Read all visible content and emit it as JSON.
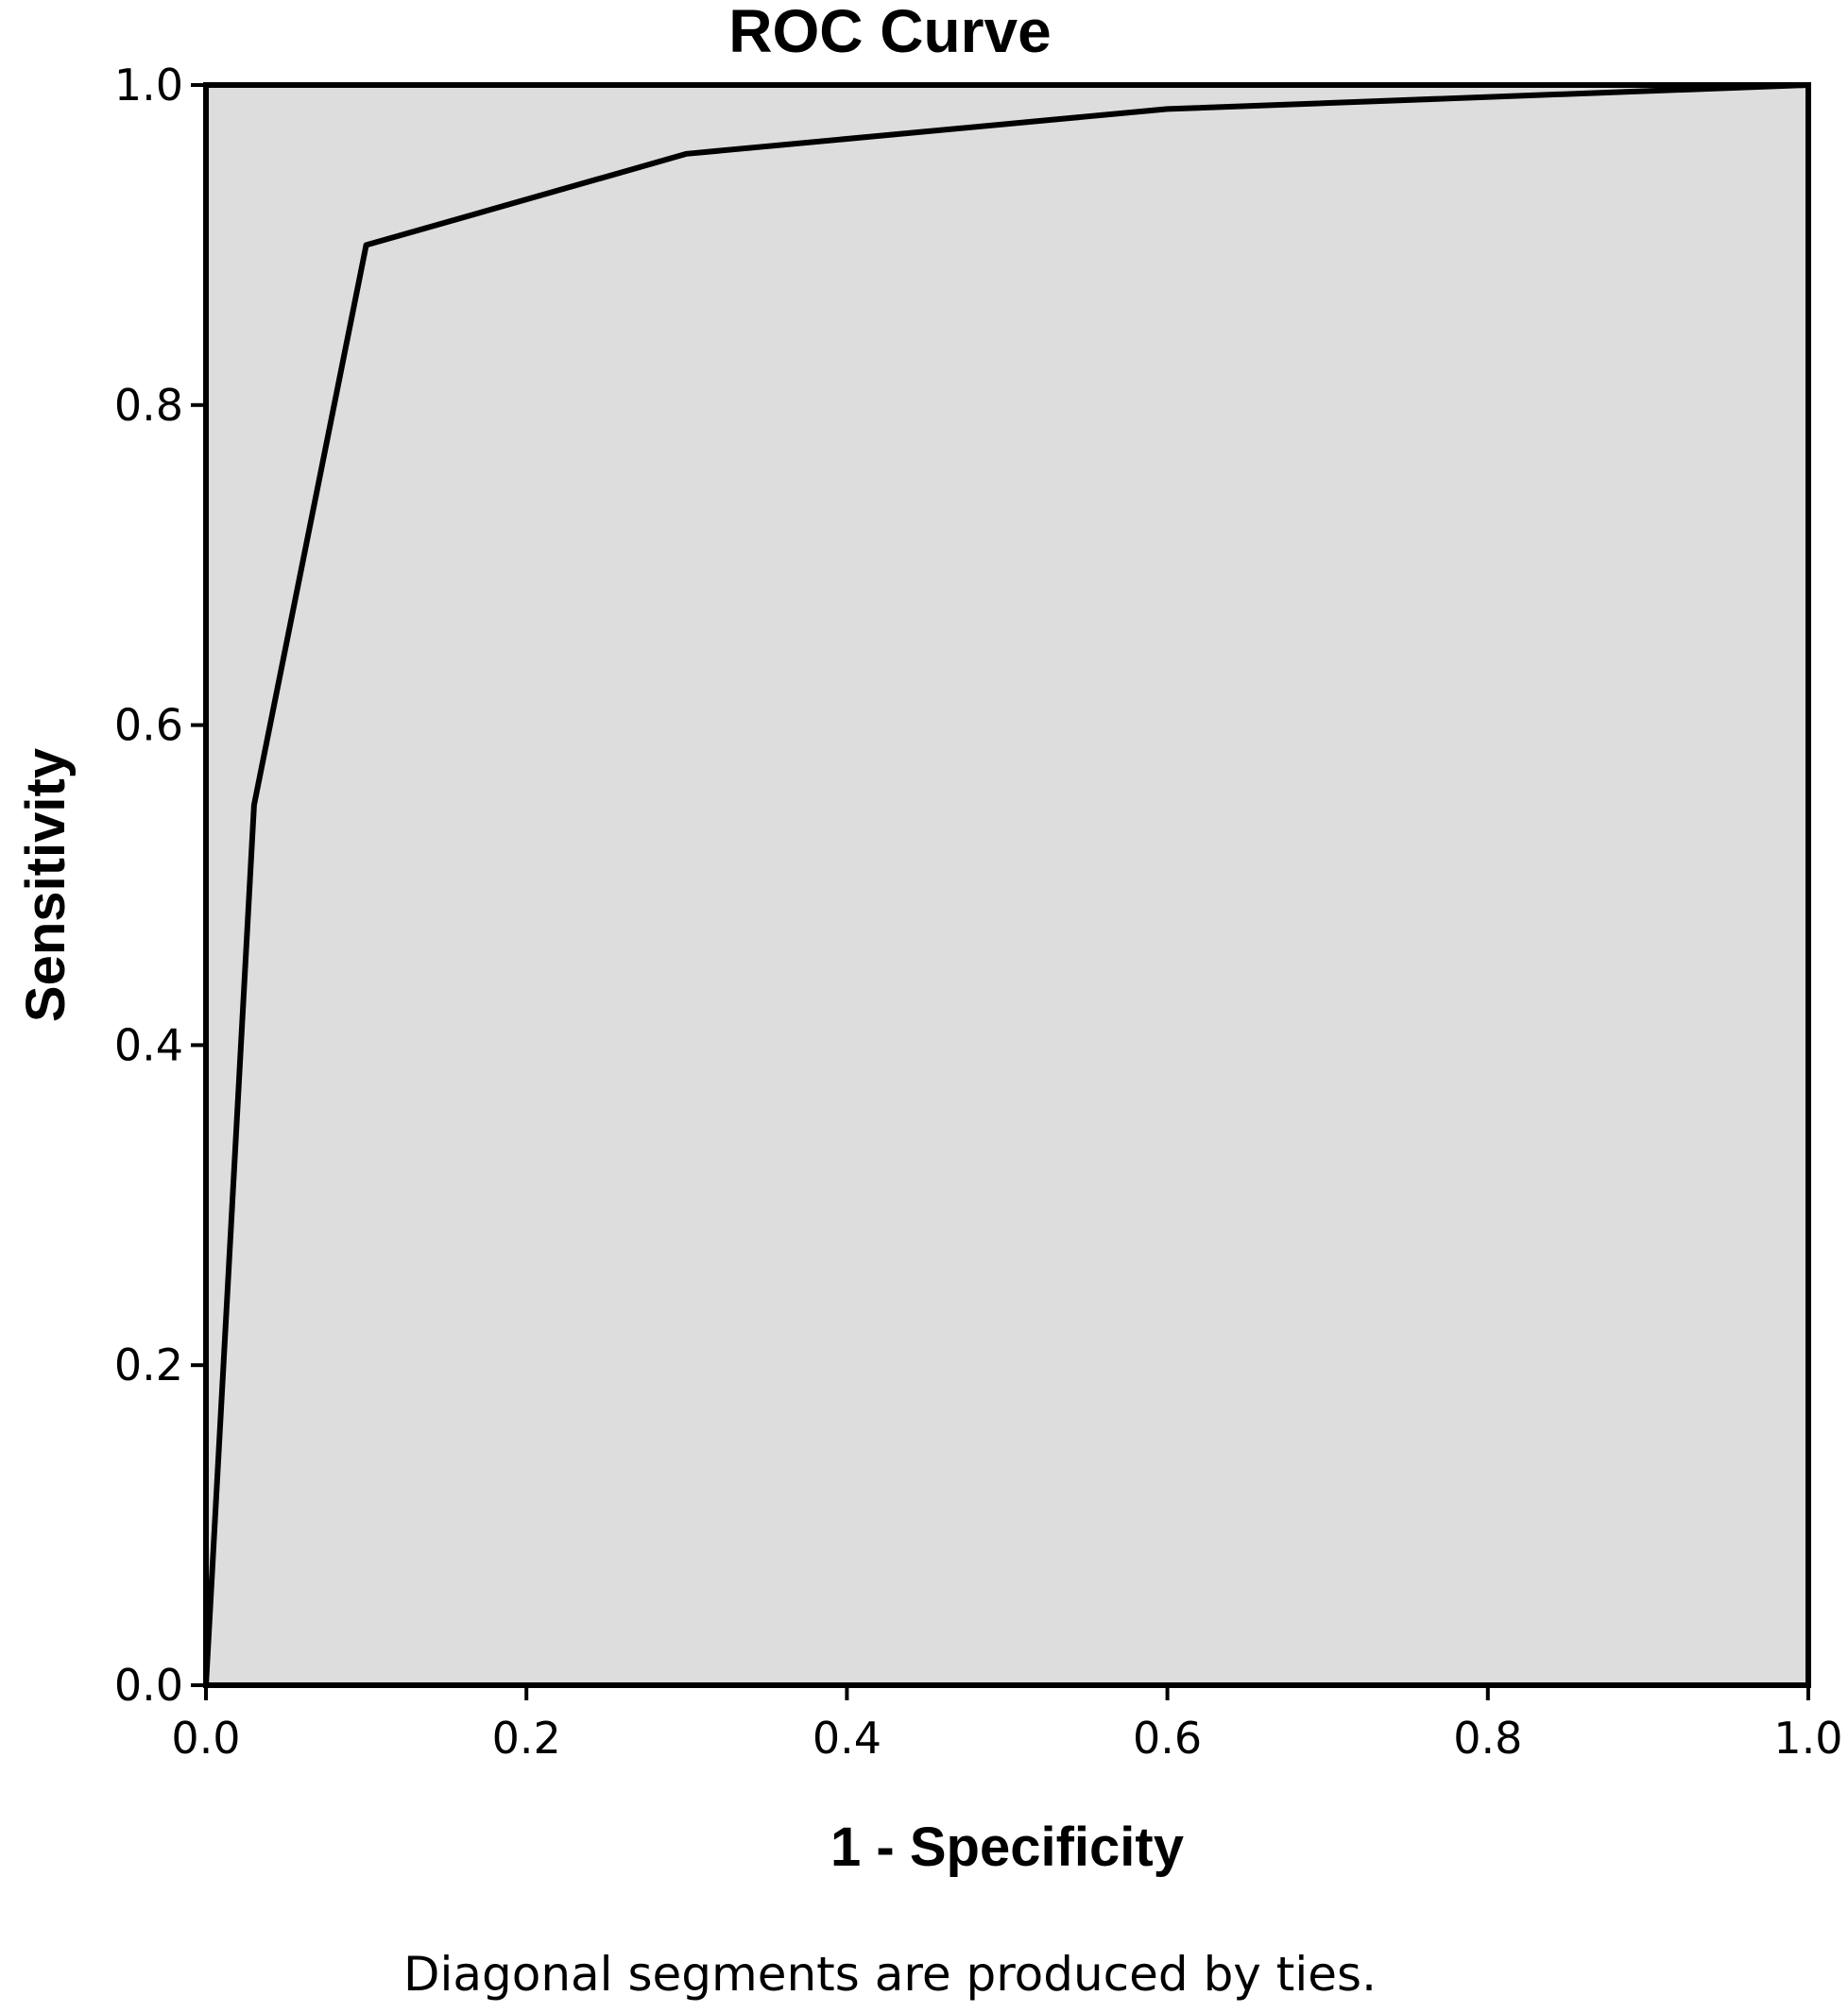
{
  "chart_data": {
    "type": "line",
    "title": "ROC Curve",
    "xlabel": "1 - Specificity",
    "ylabel": "Sensitivity",
    "footnote": "Diagonal segments are produced by ties.",
    "xlim": [
      0,
      1
    ],
    "ylim": [
      0,
      1
    ],
    "xticks": [
      "0.0",
      "0.2",
      "0.4",
      "0.6",
      "0.8",
      "1.0"
    ],
    "yticks": [
      "0.0",
      "0.2",
      "0.4",
      "0.6",
      "0.8",
      "1.0"
    ],
    "grid": false,
    "series": [
      {
        "x": [
          0.0,
          0.03,
          0.1,
          0.3,
          0.6,
          1.0
        ],
        "y": [
          0.0,
          0.55,
          0.9,
          0.957,
          0.985,
          1.0
        ]
      }
    ],
    "colors": {
      "plot_background": "#dddddd",
      "line": "#000000",
      "frame": "#000000"
    }
  }
}
